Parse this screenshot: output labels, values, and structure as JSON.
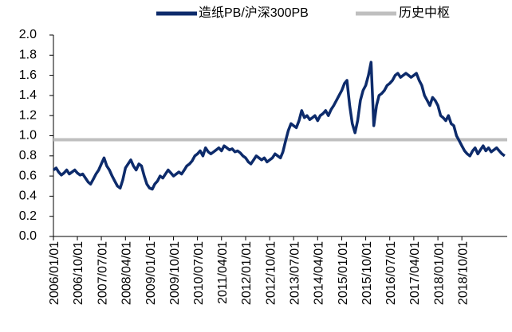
{
  "chart_data": {
    "type": "line",
    "series": [
      {
        "name": "造纸PB/沪深300PB",
        "color": "#0d2b6b",
        "x": [
          "2006/01/01",
          "2006/02/01",
          "2006/03/01",
          "2006/04/01",
          "2006/05/01",
          "2006/06/01",
          "2006/07/01",
          "2006/08/01",
          "2006/09/01",
          "2006/10/01",
          "2006/11/01",
          "2006/12/01",
          "2007/01/01",
          "2007/02/01",
          "2007/03/01",
          "2007/04/01",
          "2007/05/01",
          "2007/06/01",
          "2007/07/01",
          "2007/08/01",
          "2007/09/01",
          "2007/10/01",
          "2007/11/01",
          "2007/12/01",
          "2008/01/01",
          "2008/02/01",
          "2008/03/01",
          "2008/04/01",
          "2008/05/01",
          "2008/06/01",
          "2008/07/01",
          "2008/08/01",
          "2008/09/01",
          "2008/10/01",
          "2008/11/01",
          "2008/12/01",
          "2009/01/01",
          "2009/02/01",
          "2009/03/01",
          "2009/04/01",
          "2009/05/01",
          "2009/06/01",
          "2009/07/01",
          "2009/08/01",
          "2009/09/01",
          "2009/10/01",
          "2009/11/01",
          "2009/12/01",
          "2010/01/01",
          "2010/02/01",
          "2010/03/01",
          "2010/04/01",
          "2010/05/01",
          "2010/06/01",
          "2010/07/01",
          "2010/08/01",
          "2010/09/01",
          "2010/10/01",
          "2010/11/01",
          "2010/12/01",
          "2011/01/01",
          "2011/02/01",
          "2011/03/01",
          "2011/04/01",
          "2011/05/01",
          "2011/06/01",
          "2011/07/01",
          "2011/08/01",
          "2011/09/01",
          "2011/10/01",
          "2011/11/01",
          "2011/12/01",
          "2012/01/01",
          "2012/02/01",
          "2012/03/01",
          "2012/04/01",
          "2012/05/01",
          "2012/06/01",
          "2012/07/01",
          "2012/08/01",
          "2012/09/01",
          "2012/10/01",
          "2012/11/01",
          "2012/12/01",
          "2013/01/01",
          "2013/02/01",
          "2013/03/01",
          "2013/04/01",
          "2013/05/01",
          "2013/06/01",
          "2013/07/01",
          "2013/08/01",
          "2013/09/01",
          "2013/10/01",
          "2013/11/01",
          "2013/12/01",
          "2014/01/01",
          "2014/02/01",
          "2014/03/01",
          "2014/04/01",
          "2014/05/01",
          "2014/06/01",
          "2014/07/01",
          "2014/08/01",
          "2014/09/01",
          "2014/10/01",
          "2014/11/01",
          "2014/12/01",
          "2015/01/01",
          "2015/02/01",
          "2015/03/01",
          "2015/04/01",
          "2015/05/01",
          "2015/06/01",
          "2015/07/01",
          "2015/08/01",
          "2015/09/01",
          "2015/10/01",
          "2015/11/01",
          "2015/12/01",
          "2016/01/01",
          "2016/02/01",
          "2016/03/01",
          "2016/04/01",
          "2016/05/01",
          "2016/06/01",
          "2016/07/01",
          "2016/08/01",
          "2016/09/01",
          "2016/10/01",
          "2016/11/01",
          "2016/12/01",
          "2017/01/01",
          "2017/02/01",
          "2017/03/01",
          "2017/04/01",
          "2017/05/01",
          "2017/06/01",
          "2017/07/01",
          "2017/08/01",
          "2017/09/01",
          "2017/10/01",
          "2017/11/01",
          "2017/12/01",
          "2018/01/01",
          "2018/02/01",
          "2018/03/01",
          "2018/04/01",
          "2018/05/01",
          "2018/06/01",
          "2018/07/01",
          "2018/08/01",
          "2018/09/01",
          "2018/10/01",
          "2018/11/01",
          "2018/12/01",
          "2019/01/01",
          "2019/02/01",
          "2019/03/01",
          "2019/04/01",
          "2019/05/01",
          "2019/06/01",
          "2019/07/01",
          "2019/08/01",
          "2019/09/01",
          "2019/10/01",
          "2019/11/01",
          "2019/12/01",
          "2020/01/01",
          "2020/02/01"
        ],
        "values": [
          0.66,
          0.68,
          0.64,
          0.61,
          0.63,
          0.66,
          0.62,
          0.64,
          0.66,
          0.63,
          0.61,
          0.62,
          0.58,
          0.54,
          0.52,
          0.57,
          0.62,
          0.66,
          0.72,
          0.78,
          0.7,
          0.66,
          0.6,
          0.55,
          0.5,
          0.48,
          0.56,
          0.68,
          0.72,
          0.76,
          0.7,
          0.66,
          0.72,
          0.7,
          0.6,
          0.52,
          0.48,
          0.47,
          0.52,
          0.55,
          0.6,
          0.58,
          0.62,
          0.66,
          0.63,
          0.6,
          0.62,
          0.64,
          0.62,
          0.66,
          0.7,
          0.72,
          0.75,
          0.8,
          0.82,
          0.85,
          0.8,
          0.88,
          0.84,
          0.82,
          0.84,
          0.86,
          0.88,
          0.85,
          0.9,
          0.88,
          0.86,
          0.87,
          0.84,
          0.85,
          0.83,
          0.8,
          0.78,
          0.74,
          0.72,
          0.76,
          0.8,
          0.78,
          0.76,
          0.78,
          0.74,
          0.76,
          0.78,
          0.82,
          0.8,
          0.78,
          0.84,
          0.95,
          1.05,
          1.12,
          1.1,
          1.08,
          1.15,
          1.25,
          1.18,
          1.2,
          1.16,
          1.18,
          1.2,
          1.15,
          1.2,
          1.22,
          1.25,
          1.2,
          1.26,
          1.3,
          1.35,
          1.4,
          1.45,
          1.52,
          1.55,
          1.3,
          1.12,
          1.03,
          1.15,
          1.35,
          1.45,
          1.5,
          1.6,
          1.73,
          1.1,
          1.3,
          1.4,
          1.42,
          1.45,
          1.5,
          1.52,
          1.55,
          1.6,
          1.62,
          1.58,
          1.6,
          1.62,
          1.6,
          1.58,
          1.6,
          1.62,
          1.55,
          1.5,
          1.4,
          1.35,
          1.3,
          1.38,
          1.35,
          1.3,
          1.2,
          1.18,
          1.15,
          1.2,
          1.12,
          1.1,
          1.0,
          0.95,
          0.9,
          0.85,
          0.82,
          0.8,
          0.85,
          0.88,
          0.82,
          0.86,
          0.9,
          0.85,
          0.88,
          0.84,
          0.86,
          0.88,
          0.85,
          0.82,
          0.8
        ]
      }
    ],
    "reference_line": {
      "name": "历史中枢",
      "value": 0.96,
      "color": "#bfbfbf"
    },
    "xlim": [
      "2006/01/01",
      "2020/03/01"
    ],
    "xticks": [
      "2006/01/01",
      "2006/10/01",
      "2007/07/01",
      "2008/04/01",
      "2009/01/01",
      "2009/10/01",
      "2010/07/01",
      "2011/04/01",
      "2012/01/01",
      "2012/10/01",
      "2013/07/01",
      "2014/04/01",
      "2015/01/01",
      "2015/10/01",
      "2016/07/01",
      "2017/04/01",
      "2018/01/01",
      "2018/10/01"
    ],
    "ylim": [
      0,
      2
    ],
    "yticks": [
      {
        "value": 0,
        "label": "0.0"
      },
      {
        "value": 0.2,
        "label": "0.2"
      },
      {
        "value": 0.4,
        "label": "0.4"
      },
      {
        "value": 0.6,
        "label": "0.6"
      },
      {
        "value": 0.8,
        "label": "0.8"
      },
      {
        "value": 1,
        "label": "1.0"
      },
      {
        "value": 1.2,
        "label": "1.2"
      },
      {
        "value": 1.4,
        "label": "1.4"
      },
      {
        "value": 1.6,
        "label": "1.6"
      },
      {
        "value": 1.8,
        "label": "1.8"
      },
      {
        "value": 2,
        "label": "2.0"
      }
    ],
    "legend": "top"
  }
}
